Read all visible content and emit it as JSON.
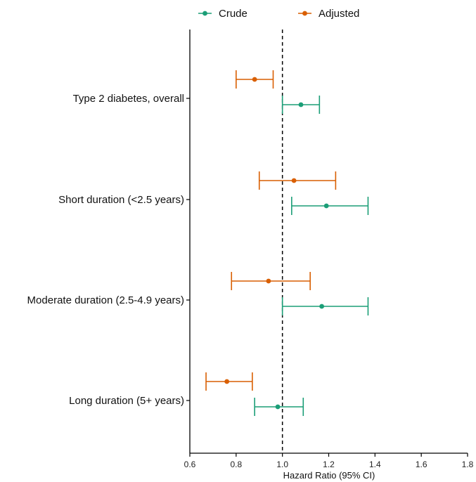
{
  "chart_data": {
    "type": "forest",
    "orientation": "horizontal",
    "xlabel": "Hazard Ratio (95% CI)",
    "ylabel": "",
    "title": "",
    "xlim": [
      0.6,
      1.8
    ],
    "x_ticks": [
      0.6,
      0.8,
      1.0,
      1.2,
      1.4,
      1.6,
      1.8
    ],
    "x_tick_labels": [
      "0.6",
      "0.8",
      "1.0",
      "1.2",
      "1.4",
      "1.6",
      "1.8"
    ],
    "reference_line": 1.0,
    "legend_position": "top-center",
    "grid": false,
    "categories": [
      "Type 2 diabetes, overall",
      "Short duration (<2.5 years)",
      "Moderate duration (2.5-4.9 years)",
      "Long duration (5+ years)"
    ],
    "series": [
      {
        "name": "Crude",
        "color": "#1b9e77",
        "estimate": [
          1.08,
          1.19,
          1.17,
          0.98
        ],
        "lower": [
          1.0,
          1.04,
          1.0,
          0.88
        ],
        "upper": [
          1.16,
          1.37,
          1.37,
          1.09
        ]
      },
      {
        "name": "Adjusted",
        "color": "#d95f02",
        "estimate": [
          0.88,
          1.05,
          0.94,
          0.76
        ],
        "lower": [
          0.8,
          0.9,
          0.78,
          0.67
        ],
        "upper": [
          0.96,
          1.23,
          1.12,
          0.87
        ]
      }
    ]
  }
}
